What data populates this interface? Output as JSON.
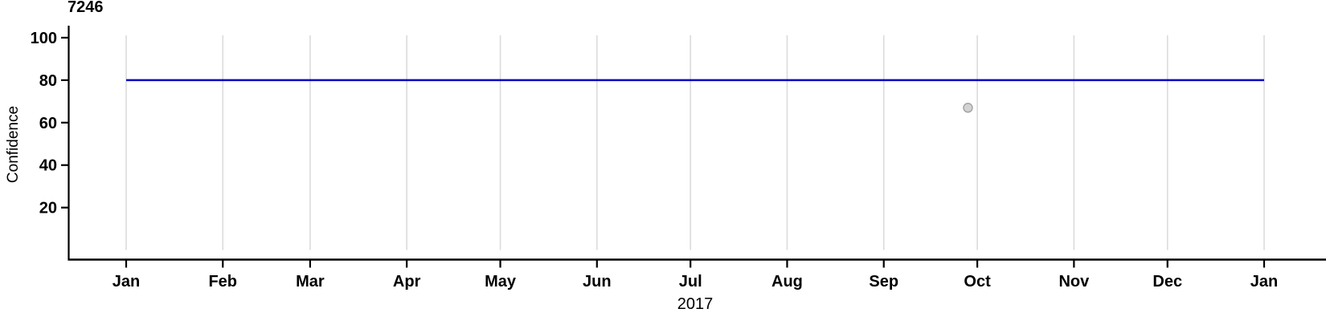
{
  "chart_data": {
    "type": "line",
    "title": "7246",
    "xlabel": "2017",
    "ylabel": "Confidence",
    "x_axis": {
      "tick_labels": [
        "Jan",
        "Feb",
        "Mar",
        "Apr",
        "May",
        "Jun",
        "Jul",
        "Aug",
        "Sep",
        "Oct",
        "Nov",
        "Dec",
        "Jan"
      ],
      "tick_day_offsets": [
        0,
        31,
        59,
        90,
        120,
        151,
        181,
        212,
        243,
        273,
        304,
        334,
        365
      ],
      "range_days": [
        0,
        365
      ],
      "grid": true
    },
    "y_axis": {
      "ticks": [
        100,
        80,
        60,
        40,
        20
      ],
      "range": [
        0,
        105
      ]
    },
    "series": [
      {
        "name": "confidence-threshold-line",
        "kind": "hline",
        "value": 80,
        "day_start": 0,
        "day_end": 365,
        "color": "#0000C8",
        "width": 2.5
      }
    ],
    "points": [
      {
        "name": "observation-point",
        "day": 270,
        "value": 67,
        "fill": "#D3D3D3",
        "stroke": "#A5A5A5",
        "radius": 5.5
      }
    ],
    "colors": {
      "grid": "#DBDBDB",
      "axis": "#000000"
    },
    "legend": "none"
  }
}
